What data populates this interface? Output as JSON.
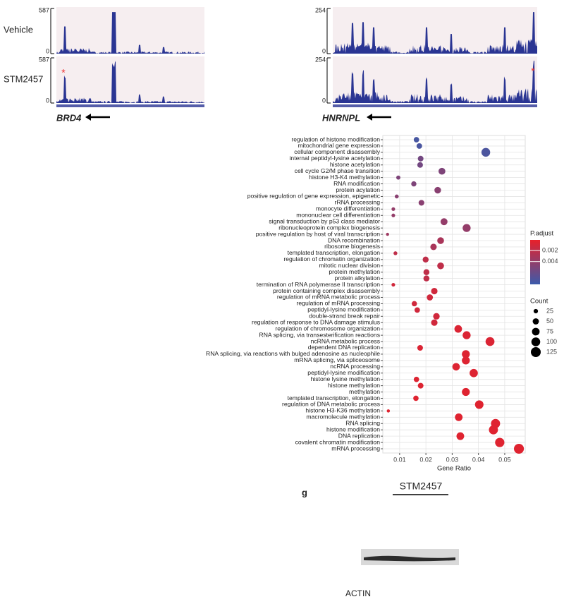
{
  "tracks": {
    "conditions": [
      "Vehicle",
      "STM2457"
    ],
    "marker": "*",
    "panels": [
      {
        "gene": "BRD4",
        "ymax": 587,
        "ymin": 0
      },
      {
        "gene": "HNRNPL",
        "ymax": 254,
        "ymin": 0
      }
    ]
  },
  "chart_data": {
    "type": "dot",
    "categories": [
      "regulation of histone modification",
      "mitochondrial gene expression",
      "cellular component disassembly",
      "internal peptidyl-lysine acetylation",
      "histone acetylation",
      "cell cycle G2/M phase transition",
      "histone H3-K4 methylation",
      "RNA modification",
      "protein acylation",
      "positive regulation of gene expression, epigenetic",
      "rRNA processing",
      "monocyte differentiation",
      "mononuclear cell differentiation",
      "signal transduction by p53 class mediator",
      "ribonucleoprotein complex biogenesis",
      "positive regulation by host of viral transcription",
      "DNA recombination",
      "ribosome biogenesis",
      "templated transcription, elongation",
      "regulation of chromatin organization",
      "mitotic nuclear division",
      "protein methylation",
      "protein alkylation",
      "termination of RNA polymerase II transcription",
      "protein containing complex disassembly",
      "regulation of mRNA metabolic process",
      "regulation of mRNA processing",
      "peptidyl-lysine modification",
      "double-strand break repair",
      "regulation of response to DNA damage stimulus",
      "regulation of chromosome organization",
      "RNA splicing, via transesterification reactions",
      "ncRNA metabolic process",
      "dependent DNA replication",
      "RNA splicing, via reactions with bulged adenosine as nucleophile",
      "mRNA splicing, via spliceosome",
      "ncRNA processing",
      "peptidyl-lysine modification",
      "histone lysine methylation",
      "histone methylation",
      "methylation",
      "templated transcription, elongation",
      "regulation of DNA metabolic process",
      "histone H3-K36 methylation",
      "macromolecule methylation",
      "RNA splicing",
      "histone modification",
      "DNA replication",
      "covalent chromatin modification",
      "mRNA processing"
    ],
    "values": [
      0.0164,
      0.0175,
      0.0428,
      0.018,
      0.0178,
      0.0261,
      0.0095,
      0.0154,
      0.0245,
      0.0089,
      0.0183,
      0.0076,
      0.0076,
      0.0269,
      0.0355,
      0.0054,
      0.0256,
      0.0229,
      0.0084,
      0.0199,
      0.0256,
      0.0202,
      0.0202,
      0.0076,
      0.0232,
      0.0215,
      0.0156,
      0.0167,
      0.024,
      0.0232,
      0.0323,
      0.0355,
      0.0444,
      0.0178,
      0.0352,
      0.0352,
      0.0315,
      0.0382,
      0.0164,
      0.018,
      0.0352,
      0.0162,
      0.0403,
      0.0057,
      0.0325,
      0.0465,
      0.0457,
      0.0331,
      0.0481,
      0.0554
    ],
    "counts": [
      38,
      40,
      98,
      41,
      41,
      60,
      22,
      35,
      56,
      20,
      42,
      17,
      17,
      62,
      82,
      12,
      59,
      53,
      19,
      46,
      59,
      46,
      46,
      17,
      53,
      49,
      36,
      38,
      55,
      53,
      74,
      82,
      102,
      41,
      81,
      81,
      72,
      88,
      38,
      41,
      81,
      37,
      93,
      13,
      75,
      107,
      105,
      76,
      111,
      127
    ],
    "p_adjust": [
      0.0075,
      0.0074,
      0.0073,
      0.0055,
      0.0055,
      0.005,
      0.005,
      0.005,
      0.0045,
      0.0045,
      0.0045,
      0.004,
      0.004,
      0.004,
      0.004,
      0.0035,
      0.003,
      0.003,
      0.002,
      0.002,
      0.002,
      0.002,
      0.002,
      0.0012,
      0.0012,
      0.0012,
      0.0012,
      0.0012,
      0.0012,
      0.0012,
      0.0007,
      0.0007,
      0.0007,
      0.0007,
      0.0006,
      0.0006,
      0.0006,
      0.0006,
      0.0006,
      0.0006,
      0.0005,
      0.0005,
      0.0005,
      0.0005,
      0.0005,
      0.0005,
      0.0005,
      0.0005,
      0.0005,
      0.0005
    ],
    "xlabel": "Gene Ratio",
    "xlim": [
      0.0036,
      0.0578
    ],
    "xticks": [
      0.01,
      0.02,
      0.03,
      0.04,
      0.05
    ],
    "grid": true,
    "color_title": "P.adjust",
    "color_lim": [
      0.0001,
      0.0081
    ],
    "color_ticks": [
      0.002,
      0.004
    ],
    "color_low": "#e8202a",
    "color_high": "#3b5bab",
    "size_title": "Count",
    "size_ticks": [
      25,
      50,
      75,
      100,
      125
    ]
  },
  "blot": {
    "panel_label": "g",
    "group_label": "STM2457",
    "protein": "ACTIN"
  }
}
